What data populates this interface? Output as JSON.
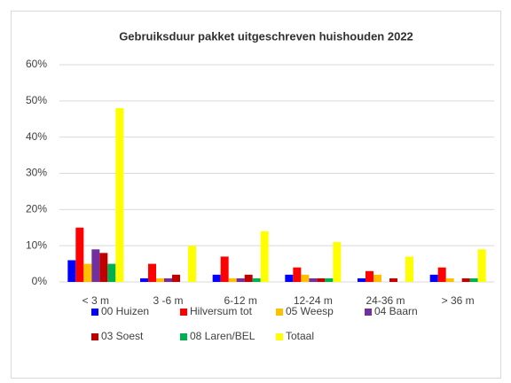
{
  "chart_data": {
    "type": "bar",
    "title": "Gebruiksduur pakket uitgeschreven huishouden 2022",
    "categories": [
      "< 3 m",
      "3 -6 m",
      "6-12 m",
      "12-24 m",
      "24-36 m",
      "> 36 m"
    ],
    "series": [
      {
        "name": "00 Huizen",
        "color": "#0000ff",
        "values": [
          6,
          1,
          2,
          2,
          1,
          2
        ]
      },
      {
        "name": "Hilversum tot",
        "color": "#ff0000",
        "values": [
          15,
          5,
          7,
          4,
          3,
          4
        ]
      },
      {
        "name": "05 Weesp",
        "color": "#ffc000",
        "values": [
          5,
          1,
          1,
          2,
          2,
          1
        ]
      },
      {
        "name": "04 Baarn",
        "color": "#7030a0",
        "values": [
          9,
          1,
          1,
          1,
          0,
          0
        ]
      },
      {
        "name": "03 Soest",
        "color": "#c00000",
        "values": [
          8,
          2,
          2,
          1,
          1,
          1
        ]
      },
      {
        "name": "08 Laren/BEL",
        "color": "#00b050",
        "values": [
          5,
          0,
          1,
          1,
          0,
          1
        ]
      },
      {
        "name": "Totaal",
        "color": "#ffff00",
        "values": [
          48,
          10,
          14,
          11,
          7,
          9
        ]
      }
    ],
    "ylim": [
      0,
      60
    ],
    "yticks": [
      {
        "value": 0,
        "label": "0%"
      },
      {
        "value": 10,
        "label": "10%"
      },
      {
        "value": 20,
        "label": "20%"
      },
      {
        "value": 30,
        "label": "30%"
      },
      {
        "value": 40,
        "label": "40%"
      },
      {
        "value": 50,
        "label": "50%"
      },
      {
        "value": 60,
        "label": "60%"
      }
    ],
    "grid": true
  }
}
